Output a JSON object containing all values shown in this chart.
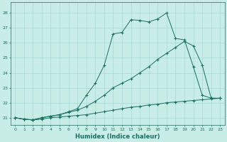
{
  "xlabel": "Humidex (Indice chaleur)",
  "xlim": [
    -0.5,
    23.5
  ],
  "ylim": [
    20.5,
    28.7
  ],
  "xticks": [
    0,
    1,
    2,
    3,
    4,
    5,
    6,
    7,
    8,
    9,
    10,
    11,
    12,
    13,
    14,
    15,
    16,
    17,
    18,
    19,
    20,
    21,
    22,
    23
  ],
  "yticks": [
    21,
    22,
    23,
    24,
    25,
    26,
    27,
    28
  ],
  "background_color": "#c8ece6",
  "grid_color": "#a8d8d0",
  "line_color": "#1a7060",
  "line1_x": [
    0,
    1,
    2,
    3,
    4,
    5,
    6,
    7,
    8,
    9,
    10,
    11,
    12,
    13,
    14,
    15,
    16,
    17,
    18,
    19,
    20,
    21,
    22,
    23
  ],
  "line1_y": [
    21.0,
    20.9,
    20.85,
    20.9,
    21.0,
    21.05,
    21.1,
    21.15,
    21.2,
    21.3,
    21.4,
    21.5,
    21.6,
    21.7,
    21.75,
    21.85,
    21.9,
    22.0,
    22.05,
    22.1,
    22.15,
    22.2,
    22.25,
    22.3
  ],
  "line2_x": [
    0,
    1,
    2,
    3,
    4,
    5,
    6,
    7,
    8,
    9,
    10,
    11,
    12,
    13,
    14,
    15,
    16,
    17,
    18,
    19,
    20,
    21,
    22,
    23
  ],
  "line2_y": [
    21.0,
    20.9,
    20.85,
    21.0,
    21.1,
    21.2,
    21.35,
    21.5,
    21.75,
    22.1,
    22.5,
    23.0,
    23.3,
    23.6,
    24.0,
    24.4,
    24.9,
    25.3,
    25.7,
    26.1,
    25.8,
    24.5,
    22.3,
    22.3
  ],
  "line3_x": [
    0,
    1,
    2,
    3,
    4,
    5,
    6,
    7,
    8,
    9,
    10,
    11,
    12,
    13,
    14,
    15,
    16,
    17,
    18,
    19,
    20,
    21,
    22,
    23
  ],
  "line3_y": [
    21.0,
    20.9,
    20.85,
    21.0,
    21.1,
    21.2,
    21.4,
    21.6,
    22.5,
    23.3,
    24.5,
    26.6,
    26.7,
    27.55,
    27.5,
    27.4,
    27.6,
    28.0,
    26.3,
    26.2,
    24.4,
    22.5,
    22.3,
    22.3
  ]
}
